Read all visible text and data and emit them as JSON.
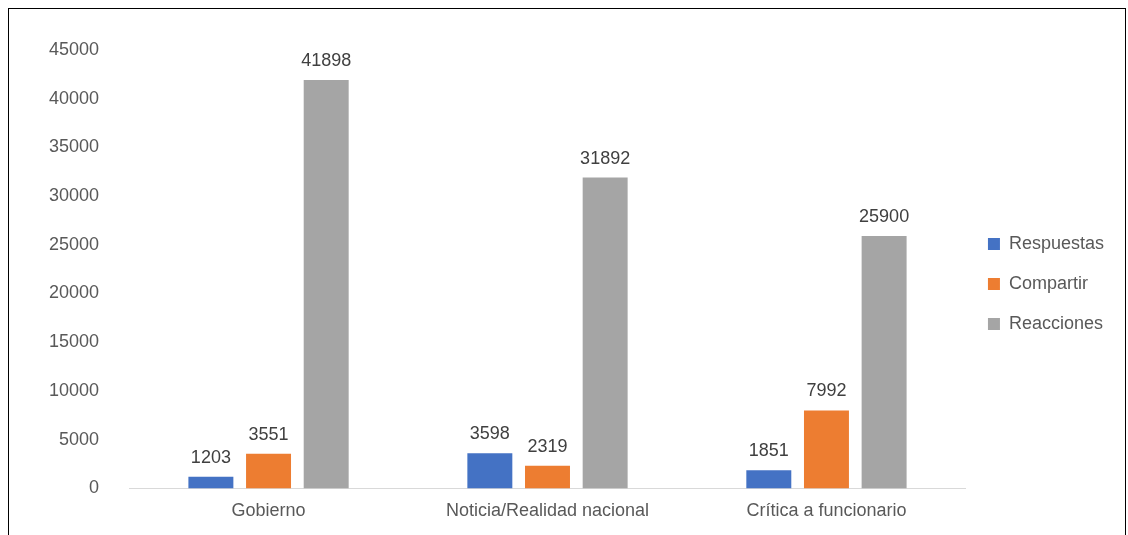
{
  "chart_data": {
    "type": "bar",
    "categories": [
      "Gobierno",
      "Noticia/Realidad nacional",
      "Crítica a funcionario"
    ],
    "series": [
      {
        "name": "Respuestas",
        "color": "#4472c4",
        "values": [
          1203,
          3598,
          1851
        ]
      },
      {
        "name": "Compartir",
        "color": "#ed7d31",
        "values": [
          3551,
          2319,
          7992
        ]
      },
      {
        "name": "Reacciones",
        "color": "#a5a5a5",
        "values": [
          41898,
          31892,
          25900
        ]
      }
    ],
    "ylim": [
      0,
      45000
    ],
    "yticks": [
      0,
      5000,
      10000,
      15000,
      20000,
      25000,
      30000,
      35000,
      40000,
      45000
    ],
    "grid": false,
    "legend": "right",
    "data_labels": true
  }
}
